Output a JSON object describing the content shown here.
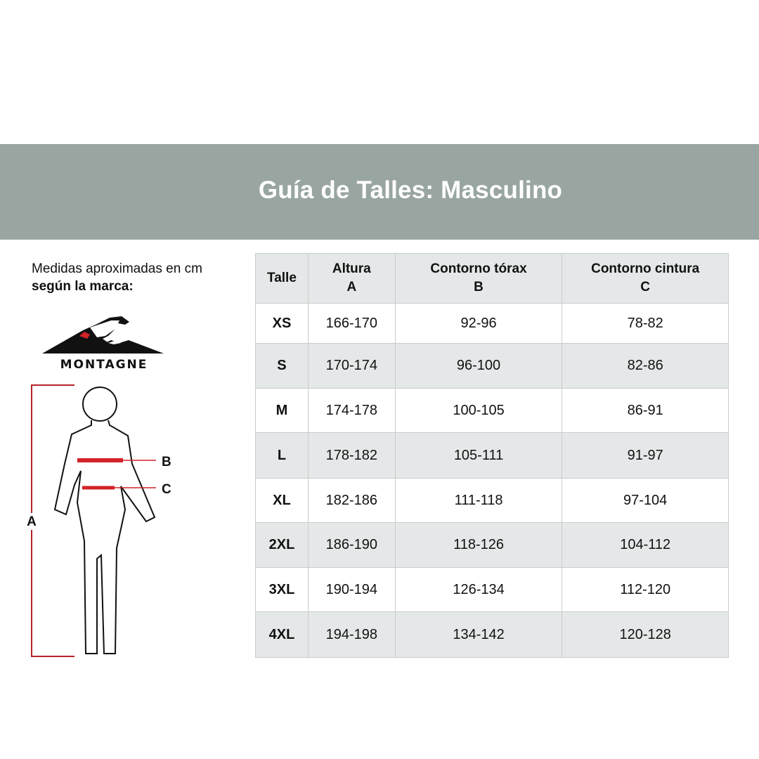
{
  "title": "Guía de Talles: Masculino",
  "intro": {
    "line1": "Medidas aproximadas en cm",
    "line2": "según la marca:"
  },
  "brand": {
    "name": "MONTAGNE",
    "accent": "#d2232a"
  },
  "figure_labels": {
    "height": "A",
    "chest": "B",
    "waist": "C"
  },
  "colors": {
    "banner": "#99a5a1",
    "row_gray": "#e5e8e8",
    "measure_line": "#d2232a"
  },
  "table": {
    "headers": [
      {
        "label": "Talle",
        "sub": ""
      },
      {
        "label": "Altura",
        "sub": "A"
      },
      {
        "label": "Contorno tórax",
        "sub": "B"
      },
      {
        "label": "Contorno cintura",
        "sub": "C"
      }
    ],
    "rows": [
      [
        "XS",
        "166-170",
        "92-96",
        "78-82"
      ],
      [
        "S",
        "170-174",
        "96-100",
        "82-86"
      ],
      [
        "M",
        "174-178",
        "100-105",
        "86-91"
      ],
      [
        "L",
        "178-182",
        "105-111",
        "91-97"
      ],
      [
        "XL",
        "182-186",
        "111-118",
        "97-104"
      ],
      [
        "2XL",
        "186-190",
        "118-126",
        "104-112"
      ],
      [
        "3XL",
        "190-194",
        "126-134",
        "112-120"
      ],
      [
        "4XL",
        "194-198",
        "134-142",
        "120-128"
      ]
    ]
  }
}
